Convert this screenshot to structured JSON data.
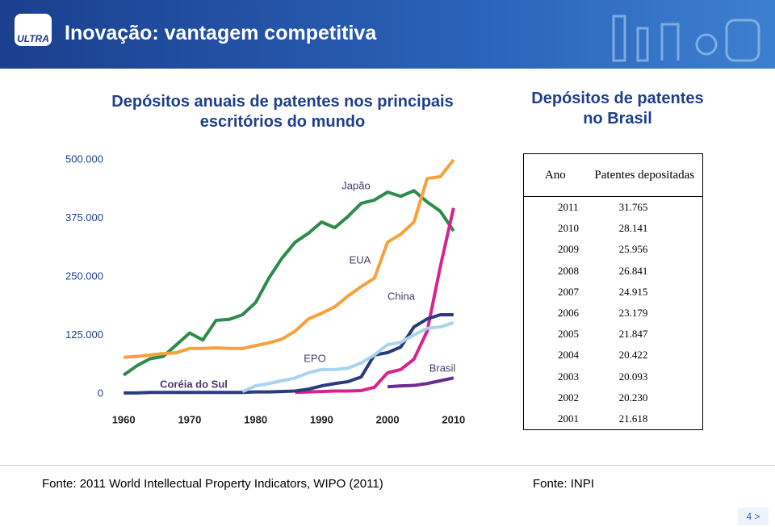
{
  "header": {
    "logo": "ULTRA",
    "title": "Inovação: vantagem competitiva"
  },
  "chart_data": {
    "type": "line",
    "title": "Depósitos anuais de patentes nos principais escritórios do mundo",
    "x": [
      1960,
      1962,
      1964,
      1966,
      1968,
      1970,
      1972,
      1974,
      1976,
      1978,
      1980,
      1982,
      1984,
      1986,
      1988,
      1990,
      1992,
      1994,
      1996,
      1998,
      2000,
      2002,
      2004,
      2006,
      2008,
      2010
    ],
    "series": [
      {
        "name": "Japão",
        "color": "#2e8b4a",
        "values": [
          40000,
          60000,
          75000,
          80000,
          105000,
          130000,
          115000,
          157000,
          159000,
          169000,
          195000,
          247000,
          290000,
          324000,
          343000,
          367000,
          355000,
          379000,
          407000,
          414000,
          431000,
          422000,
          434000,
          410000,
          390000,
          348000
        ]
      },
      {
        "name": "EUA",
        "color": "#f5a13c",
        "values": [
          78000,
          80000,
          83000,
          86000,
          88000,
          97000,
          97000,
          98000,
          97000,
          97000,
          103000,
          109000,
          117000,
          134000,
          160000,
          172000,
          186000,
          209000,
          229000,
          247000,
          324000,
          341000,
          367000,
          460000,
          464000,
          500000
        ]
      },
      {
        "name": "China",
        "color": "#d6248f",
        "values": [
          null,
          null,
          null,
          null,
          null,
          null,
          null,
          null,
          null,
          null,
          null,
          null,
          null,
          3000,
          4000,
          5000,
          6000,
          6000,
          7000,
          14000,
          45000,
          52000,
          74000,
          134000,
          272000,
          397000
        ]
      },
      {
        "name": "Coréia do Sul",
        "color": "#2b3a7a",
        "values": [
          2000,
          2000,
          3000,
          3000,
          3000,
          3000,
          3000,
          3000,
          3000,
          3000,
          4000,
          4000,
          5000,
          6000,
          10000,
          17000,
          22000,
          26000,
          36000,
          83000,
          88000,
          100000,
          143000,
          160000,
          169000,
          169000
        ]
      },
      {
        "name": "EPO",
        "color": "#a8d4f0",
        "values": [
          null,
          null,
          null,
          null,
          null,
          null,
          null,
          null,
          null,
          5000,
          17000,
          22000,
          28000,
          34000,
          45000,
          52000,
          52000,
          55000,
          66000,
          83000,
          105000,
          110000,
          126000,
          140000,
          143000,
          152000
        ]
      },
      {
        "name": "Brasil",
        "color": "#6a2d8f",
        "values": [
          null,
          null,
          null,
          null,
          null,
          null,
          null,
          null,
          null,
          null,
          null,
          null,
          null,
          null,
          null,
          null,
          null,
          null,
          null,
          null,
          15000,
          17000,
          18000,
          22000,
          28000,
          34000
        ]
      }
    ],
    "xlim": [
      1959,
      2011
    ],
    "xticks": [
      1960,
      1970,
      1980,
      1990,
      2000,
      2010
    ],
    "ylim": [
      0,
      500000
    ],
    "yticks": [
      0,
      {
        "value": 125000,
        "label": "125.000"
      },
      {
        "value": 250000,
        "label": "250.000"
      },
      {
        "value": 375000,
        "label": "375.000"
      },
      {
        "value": 500000,
        "label": "500.000"
      }
    ],
    "grid": false
  },
  "table": {
    "title": "Depósitos de patentes no Brasil",
    "header": [
      "Ano",
      "Patentes depositadas"
    ],
    "rows": [
      [
        "2011",
        "31.765"
      ],
      [
        "2010",
        "28.141"
      ],
      [
        "2009",
        "25.956"
      ],
      [
        "2008",
        "26.841"
      ],
      [
        "2007",
        "24.915"
      ],
      [
        "2006",
        "23.179"
      ],
      [
        "2005",
        "21.847"
      ],
      [
        "2004",
        "20.422"
      ],
      [
        "2003",
        "20.093"
      ],
      [
        "2002",
        "20.230"
      ],
      [
        "2001",
        "21.618"
      ]
    ]
  },
  "footer": {
    "source_left": "Fonte: 2011 World Intellectual Property Indicators, WIPO (2011)",
    "source_right": "Fonte: INPI",
    "page": "4 >"
  }
}
